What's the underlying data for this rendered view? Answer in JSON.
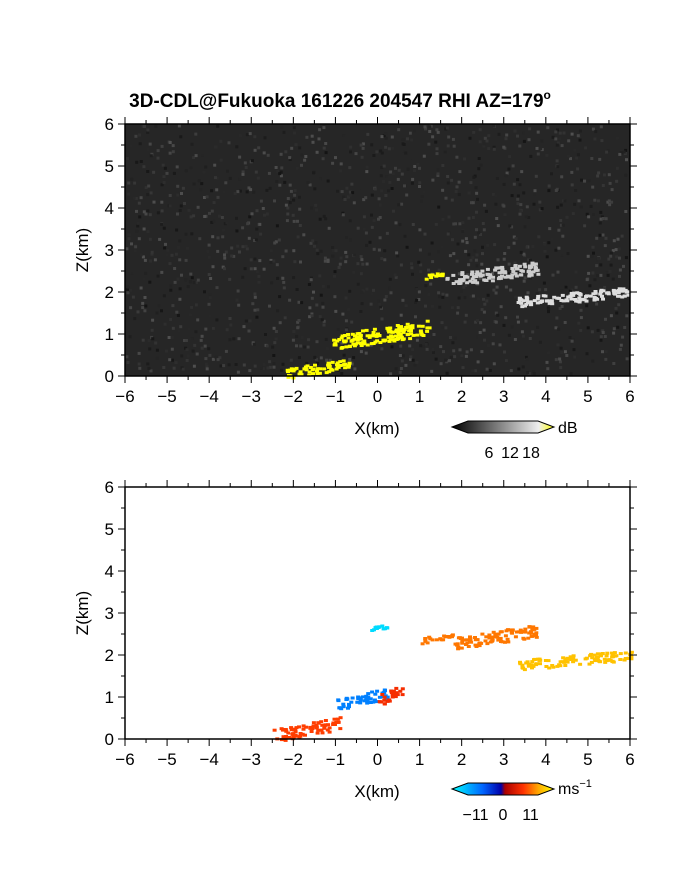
{
  "title": "3D-CDL@Fukuoka 161226 204547 RHI AZ=179",
  "title_degree": "o",
  "chart_data": [
    {
      "type": "heatmap",
      "name": "signal-intensity-panel",
      "xlabel": "X(km)",
      "ylabel": "Z(km)",
      "xlim": [
        -6,
        6
      ],
      "ylim": [
        0,
        6
      ],
      "xticks": [
        "−6",
        "−5",
        "−4",
        "−3",
        "−2",
        "−1",
        "0",
        "1",
        "2",
        "3",
        "4",
        "5",
        "6"
      ],
      "yticks": [
        "0",
        "1",
        "2",
        "3",
        "4",
        "5",
        "6"
      ],
      "colorbar": {
        "unit": "dB",
        "ticks": [
          6,
          12,
          18
        ],
        "range": [
          0,
          20
        ]
      },
      "features": [
        {
          "x": [
            -1.1,
            1.2
          ],
          "z": [
            0.7,
            1.3
          ],
          "level": "high",
          "color": "#ffff00"
        },
        {
          "x": [
            1.1,
            1.6
          ],
          "z": [
            2.35,
            2.5
          ],
          "level": "high",
          "color": "#ffff00"
        },
        {
          "x": [
            -2.2,
            -0.7
          ],
          "z": [
            0.0,
            0.4
          ],
          "level": "high",
          "color": "#ffff00"
        },
        {
          "x": [
            1.6,
            3.8
          ],
          "z": [
            2.2,
            2.7
          ],
          "level": "medium",
          "color": "#cccccc"
        },
        {
          "x": [
            3.3,
            6.0
          ],
          "z": [
            1.7,
            2.1
          ],
          "level": "medium",
          "color": "#dddddd"
        }
      ]
    },
    {
      "type": "heatmap",
      "name": "doppler-velocity-panel",
      "xlabel": "X(km)",
      "ylabel": "Z(km)",
      "xlim": [
        -6,
        6
      ],
      "ylim": [
        0,
        6
      ],
      "xticks": [
        "−6",
        "−5",
        "−4",
        "−3",
        "−2",
        "−1",
        "0",
        "1",
        "2",
        "3",
        "4",
        "5",
        "6"
      ],
      "yticks": [
        "0",
        "1",
        "2",
        "3",
        "4",
        "5",
        "6"
      ],
      "colorbar": {
        "unit": "ms",
        "unit_exp": "−1",
        "ticks": [
          "−11",
          "0",
          "11"
        ],
        "range": [
          -14,
          14
        ]
      },
      "features": [
        {
          "x": [
            -1.0,
            0.2
          ],
          "z": [
            0.75,
            1.2
          ],
          "velocity": -7
        },
        {
          "x": [
            0.0,
            0.6
          ],
          "z": [
            0.85,
            1.3
          ],
          "velocity": 5
        },
        {
          "x": [
            1.0,
            1.8
          ],
          "z": [
            2.3,
            2.55
          ],
          "velocity": 8
        },
        {
          "x": [
            1.8,
            3.8
          ],
          "z": [
            2.2,
            2.7
          ],
          "velocity": 8
        },
        {
          "x": [
            3.3,
            6.0
          ],
          "z": [
            1.7,
            2.1
          ],
          "velocity": 11
        },
        {
          "x": [
            -2.5,
            -0.9
          ],
          "z": [
            0.0,
            0.5
          ],
          "velocity": 6
        },
        {
          "x": [
            -0.2,
            0.2
          ],
          "z": [
            2.6,
            2.75
          ],
          "velocity": -12
        }
      ]
    }
  ]
}
